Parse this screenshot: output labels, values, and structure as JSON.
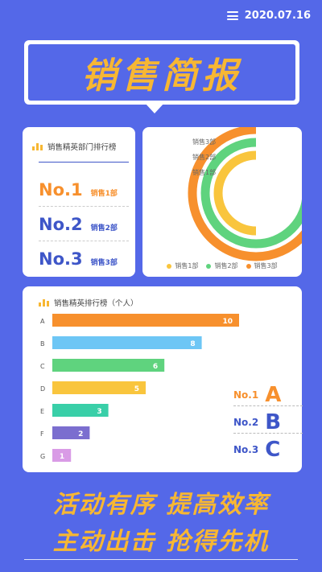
{
  "header": {
    "date": "2020.07.16"
  },
  "title": "销售简报",
  "department_card": {
    "title": "销售精英部门排行榜",
    "ranks": [
      {
        "no": "No.1",
        "dept": "销售1部",
        "color": "#f7902d"
      },
      {
        "no": "No.2",
        "dept": "销售2部",
        "color": "#3e56c8"
      },
      {
        "no": "No.3",
        "dept": "销售3部",
        "color": "#3e56c8"
      }
    ]
  },
  "individual_card": {
    "title": "销售精英排行榜（个人）",
    "ranks": [
      {
        "no": "No.1",
        "name": "A",
        "no_color": "#f7902d",
        "name_color": "#f7902d"
      },
      {
        "no": "No.2",
        "name": "B",
        "no_color": "#3e56c8",
        "name_color": "#3e56c8"
      },
      {
        "no": "No.3",
        "name": "C",
        "no_color": "#3e56c8",
        "name_color": "#3e56c8"
      }
    ]
  },
  "slogans": [
    "活动有序 提高效率",
    "主动出击 抢得先机"
  ],
  "chart_data": [
    {
      "type": "pie",
      "variant": "concentric-rings",
      "categories": [
        "销售1部",
        "销售2部",
        "销售3部"
      ],
      "values": [
        0.5,
        0.75,
        0.8
      ],
      "colors": [
        "#f9c53d",
        "#5fd37e",
        "#f7902d"
      ],
      "legend": "bottom"
    },
    {
      "type": "bar",
      "orientation": "horizontal",
      "title": "销售精英排行榜（个人）",
      "categories": [
        "A",
        "B",
        "C",
        "D",
        "E",
        "F",
        "G"
      ],
      "values": [
        10,
        8,
        6,
        5,
        3,
        2,
        1
      ],
      "colors": [
        "#f7902d",
        "#6dc6f5",
        "#5fd37e",
        "#f9c53d",
        "#39cfa8",
        "#7b6ecf",
        "#d99be6"
      ],
      "data_labels": true
    }
  ]
}
